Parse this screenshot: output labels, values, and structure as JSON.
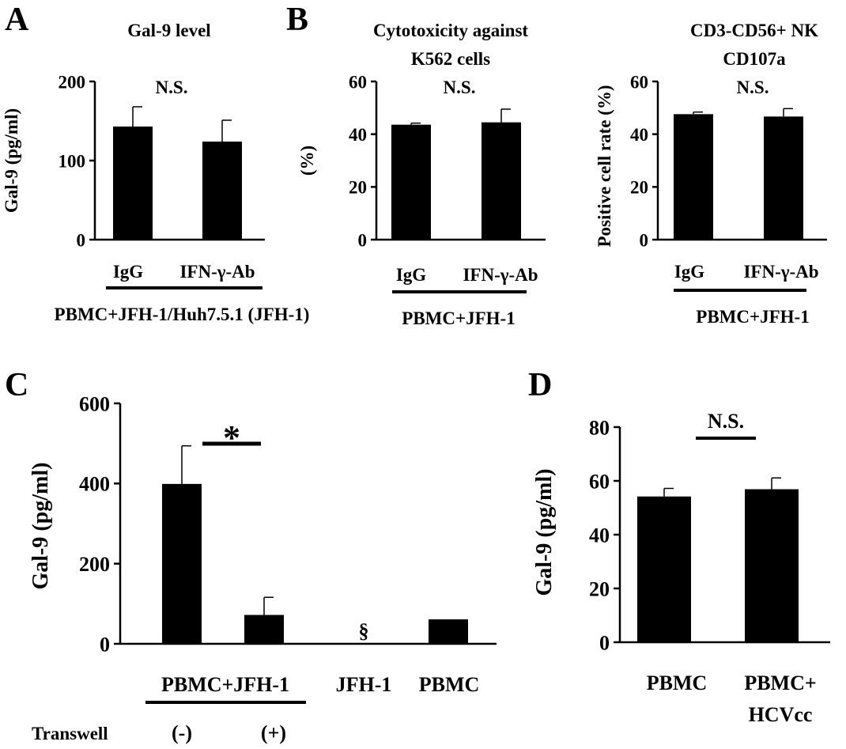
{
  "figure_title": "",
  "chart_data": [
    {
      "panel": "A",
      "type": "bar",
      "title": "Gal-9 level",
      "ylabel": "Gal-9 (pg/ml)",
      "xlabel": "",
      "categories": [
        "IgG",
        "IFN-γ-Ab"
      ],
      "values": [
        143,
        124
      ],
      "errors": [
        25,
        27
      ],
      "ylim": [
        0,
        200
      ],
      "yticks": [
        "0",
        "100",
        "200"
      ],
      "annotations": [
        "N.S."
      ],
      "group_labels": [
        "PBMC+JFH-1/Huh7.5.1 (JFH-1)"
      ]
    },
    {
      "panel": "B",
      "type": "bar",
      "title": "Cytotoxicity against K562 cells",
      "title_lines": [
        "Cytotoxicity against",
        "K562 cells"
      ],
      "ylabel": "(%)",
      "xlabel": "",
      "categories": [
        "IgG",
        "IFN-γ-Ab"
      ],
      "values": [
        43.6,
        44.5
      ],
      "errors": [
        0.6,
        5.0
      ],
      "ylim": [
        0,
        60
      ],
      "yticks": [
        "0",
        "20",
        "40",
        "60"
      ],
      "annotations": [
        "N.S."
      ],
      "group_labels": [
        "PBMC+JFH-1"
      ]
    },
    {
      "panel": "",
      "type": "bar",
      "title": "CD3-CD56+ NK CD107a",
      "title_lines": [
        "CD3-CD56+ NK",
        "CD107a"
      ],
      "ylabel": "Positive cell rate (%)",
      "xlabel": "",
      "categories": [
        "IgG",
        "IFN-γ-Ab"
      ],
      "values": [
        47.6,
        46.7
      ],
      "errors": [
        0.8,
        3.0
      ],
      "ylim": [
        0,
        60
      ],
      "yticks": [
        "0",
        "20",
        "40",
        "60"
      ],
      "annotations": [
        "N.S."
      ],
      "group_labels": [
        "PBMC+JFH-1"
      ]
    },
    {
      "panel": "C",
      "type": "bar",
      "title": "",
      "ylabel": "Gal-9 (pg/ml)",
      "xlabel": "",
      "categories": [
        "(-)",
        "(+)",
        "JFH-1",
        "PBMC"
      ],
      "values": [
        399,
        72,
        0,
        61
      ],
      "errors": [
        95,
        44,
        0,
        0
      ],
      "ylim": [
        0,
        600
      ],
      "yticks": [
        "0",
        "200",
        "400",
        "600"
      ],
      "annotations": [
        "*",
        "§"
      ],
      "group_labels": [
        "PBMC+JFH-1"
      ],
      "row_label": "Transwell"
    },
    {
      "panel": "D",
      "type": "bar",
      "title": "",
      "ylabel": "Gal-9 (pg/ml)",
      "xlabel": "",
      "categories": [
        "PBMC",
        "PBMC+ HCVcc"
      ],
      "category_lines": [
        [
          "PBMC"
        ],
        [
          "PBMC+",
          "HCVcc"
        ]
      ],
      "values": [
        54.2,
        56.9
      ],
      "errors": [
        3.0,
        4.2
      ],
      "ylim": [
        0,
        80
      ],
      "yticks": [
        "0",
        "20",
        "40",
        "60",
        "80"
      ],
      "annotations": [
        "N.S."
      ],
      "group_labels": []
    }
  ]
}
